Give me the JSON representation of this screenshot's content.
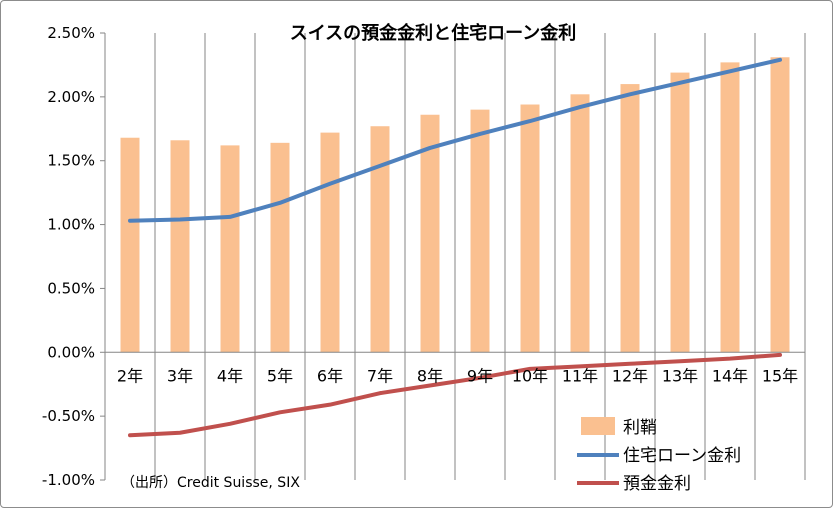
{
  "chart_data": {
    "type": "bar+line",
    "title": "スイスの預金金利と住宅ローン金利",
    "categories": [
      "2年",
      "3年",
      "4年",
      "5年",
      "6年",
      "7年",
      "8年",
      "9年",
      "10年",
      "11年",
      "12年",
      "13年",
      "14年",
      "15年"
    ],
    "series": [
      {
        "name": "利鞘",
        "kind": "bar",
        "color": "#FAC090",
        "values": [
          1.68,
          1.66,
          1.62,
          1.64,
          1.72,
          1.77,
          1.86,
          1.9,
          1.94,
          2.02,
          2.1,
          2.19,
          2.27,
          2.31
        ]
      },
      {
        "name": "住宅ローン金利",
        "kind": "line",
        "color": "#4F81BD",
        "values": [
          1.03,
          1.04,
          1.06,
          1.17,
          1.32,
          1.46,
          1.6,
          1.71,
          1.81,
          1.92,
          2.02,
          2.11,
          2.2,
          2.29
        ]
      },
      {
        "name": "預金金利",
        "kind": "line",
        "color": "#C0504D",
        "values": [
          -0.65,
          -0.63,
          -0.56,
          -0.47,
          -0.41,
          -0.32,
          -0.26,
          -0.2,
          -0.13,
          -0.11,
          -0.09,
          -0.07,
          -0.05,
          -0.02
        ]
      }
    ],
    "ylim": [
      -1.0,
      2.5
    ],
    "yticks": [
      2.5,
      2.0,
      1.5,
      1.0,
      0.5,
      0.0,
      -0.5,
      -1.0
    ],
    "ytick_labels": [
      "2.50%",
      "2.00%",
      "1.50%",
      "1.00%",
      "0.50%",
      "0.00%",
      "-0.50%",
      "-1.00%"
    ],
    "xlabel": "",
    "ylabel": "",
    "grid": "vertical",
    "legend_position": "bottom-right",
    "source_note": "（出所）Credit Suisse, SIX"
  }
}
